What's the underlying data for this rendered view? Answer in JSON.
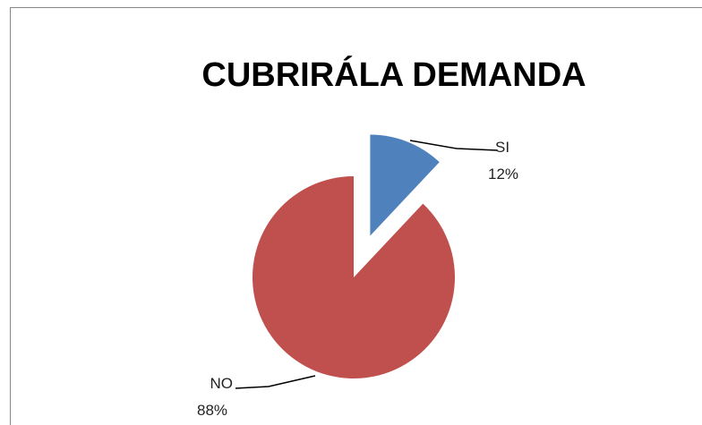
{
  "chart_data": {
    "type": "pie",
    "title": "CUBRIRÁLA DEMANDA",
    "categories": [
      "SI",
      "NO"
    ],
    "values": [
      12,
      88
    ],
    "value_labels": [
      "12%",
      "88%"
    ],
    "colors": [
      "#4f81bd",
      "#c0504d"
    ],
    "exploded": [
      true,
      false
    ]
  }
}
